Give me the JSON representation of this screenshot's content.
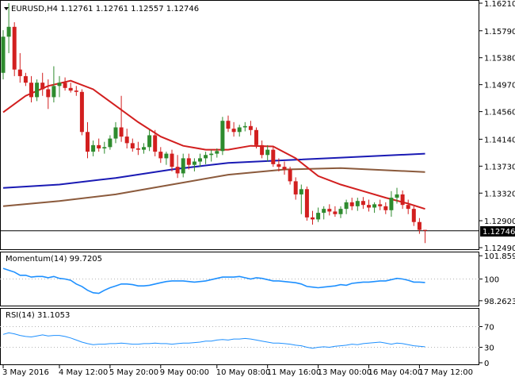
{
  "chart_data": {
    "type": "candlestick",
    "symbol_line": "EURUSD,H4  1.12761 1.12761 1.12557 1.12746",
    "last_price": "1.12746",
    "colors": {
      "bull": "#2e8b2e",
      "bear": "#d21f1f",
      "ma20": "#d21f1f",
      "ma100": "#1a1ab4",
      "ma200": "#8b5a3c",
      "momentum": "#1e90ff",
      "rsi": "#1e90ff",
      "grid": "#c8c8c8",
      "level_dots": "#b4b4b4"
    },
    "price_axis": {
      "min": 1.1249,
      "max": 1.1621,
      "ticks": [
        "1.16210",
        "1.15790",
        "1.15380",
        "1.14970",
        "1.14560",
        "1.14140",
        "1.13730",
        "1.13320",
        "1.12900",
        "1.12490"
      ]
    },
    "candles": [
      {
        "o": 1.1515,
        "h": 1.158,
        "l": 1.1505,
        "c": 1.157
      },
      {
        "o": 1.157,
        "h": 1.1621,
        "l": 1.1545,
        "c": 1.1585
      },
      {
        "o": 1.1585,
        "h": 1.1592,
        "l": 1.151,
        "c": 1.152
      },
      {
        "o": 1.152,
        "h": 1.1545,
        "l": 1.15,
        "c": 1.151
      },
      {
        "o": 1.151,
        "h": 1.1515,
        "l": 1.1495,
        "c": 1.15
      },
      {
        "o": 1.15,
        "h": 1.151,
        "l": 1.147,
        "c": 1.1478
      },
      {
        "o": 1.1478,
        "h": 1.1505,
        "l": 1.1472,
        "c": 1.15
      },
      {
        "o": 1.15,
        "h": 1.1515,
        "l": 1.148,
        "c": 1.149
      },
      {
        "o": 1.149,
        "h": 1.1505,
        "l": 1.146,
        "c": 1.1478
      },
      {
        "o": 1.1478,
        "h": 1.1525,
        "l": 1.147,
        "c": 1.1495
      },
      {
        "o": 1.1495,
        "h": 1.151,
        "l": 1.1478,
        "c": 1.15
      },
      {
        "o": 1.15,
        "h": 1.1508,
        "l": 1.1488,
        "c": 1.1492
      },
      {
        "o": 1.1492,
        "h": 1.15,
        "l": 1.1485,
        "c": 1.1488
      },
      {
        "o": 1.1488,
        "h": 1.1495,
        "l": 1.148,
        "c": 1.1486
      },
      {
        "o": 1.1486,
        "h": 1.149,
        "l": 1.142,
        "c": 1.1425
      },
      {
        "o": 1.1425,
        "h": 1.144,
        "l": 1.1385,
        "c": 1.1395
      },
      {
        "o": 1.1395,
        "h": 1.1412,
        "l": 1.1388,
        "c": 1.1405
      },
      {
        "o": 1.1405,
        "h": 1.1415,
        "l": 1.1395,
        "c": 1.14
      },
      {
        "o": 1.14,
        "h": 1.141,
        "l": 1.1392,
        "c": 1.1402
      },
      {
        "o": 1.1402,
        "h": 1.142,
        "l": 1.1398,
        "c": 1.1415
      },
      {
        "o": 1.1415,
        "h": 1.144,
        "l": 1.1408,
        "c": 1.1432
      },
      {
        "o": 1.1432,
        "h": 1.148,
        "l": 1.141,
        "c": 1.1418
      },
      {
        "o": 1.1418,
        "h": 1.143,
        "l": 1.14,
        "c": 1.1408
      },
      {
        "o": 1.1408,
        "h": 1.1415,
        "l": 1.1395,
        "c": 1.14
      },
      {
        "o": 1.14,
        "h": 1.141,
        "l": 1.139,
        "c": 1.1398
      },
      {
        "o": 1.1398,
        "h": 1.1408,
        "l": 1.1392,
        "c": 1.1402
      },
      {
        "o": 1.1402,
        "h": 1.1428,
        "l": 1.1396,
        "c": 1.142
      },
      {
        "o": 1.142,
        "h": 1.1428,
        "l": 1.1388,
        "c": 1.1395
      },
      {
        "o": 1.1395,
        "h": 1.1402,
        "l": 1.1378,
        "c": 1.1385
      },
      {
        "o": 1.1385,
        "h": 1.1395,
        "l": 1.1375,
        "c": 1.1392
      },
      {
        "o": 1.1392,
        "h": 1.1398,
        "l": 1.1365,
        "c": 1.1372
      },
      {
        "o": 1.1372,
        "h": 1.139,
        "l": 1.1355,
        "c": 1.1362
      },
      {
        "o": 1.1362,
        "h": 1.1392,
        "l": 1.1356,
        "c": 1.1385
      },
      {
        "o": 1.1385,
        "h": 1.1392,
        "l": 1.1368,
        "c": 1.1375
      },
      {
        "o": 1.1375,
        "h": 1.1385,
        "l": 1.1365,
        "c": 1.138
      },
      {
        "o": 1.138,
        "h": 1.1392,
        "l": 1.1372,
        "c": 1.1385
      },
      {
        "o": 1.1385,
        "h": 1.1395,
        "l": 1.1376,
        "c": 1.139
      },
      {
        "o": 1.139,
        "h": 1.1398,
        "l": 1.138,
        "c": 1.1392
      },
      {
        "o": 1.1392,
        "h": 1.14,
        "l": 1.1386,
        "c": 1.1396
      },
      {
        "o": 1.1396,
        "h": 1.1448,
        "l": 1.139,
        "c": 1.1442
      },
      {
        "o": 1.1442,
        "h": 1.145,
        "l": 1.1425,
        "c": 1.143
      },
      {
        "o": 1.143,
        "h": 1.144,
        "l": 1.1418,
        "c": 1.1425
      },
      {
        "o": 1.1425,
        "h": 1.1436,
        "l": 1.1418,
        "c": 1.1432
      },
      {
        "o": 1.1432,
        "h": 1.144,
        "l": 1.1426,
        "c": 1.1434
      },
      {
        "o": 1.1434,
        "h": 1.1442,
        "l": 1.142,
        "c": 1.1428
      },
      {
        "o": 1.1428,
        "h": 1.1432,
        "l": 1.14,
        "c": 1.1405
      },
      {
        "o": 1.1405,
        "h": 1.1412,
        "l": 1.1385,
        "c": 1.139
      },
      {
        "o": 1.139,
        "h": 1.1405,
        "l": 1.138,
        "c": 1.1398
      },
      {
        "o": 1.1398,
        "h": 1.1402,
        "l": 1.1372,
        "c": 1.1376
      },
      {
        "o": 1.1376,
        "h": 1.1385,
        "l": 1.1365,
        "c": 1.1372
      },
      {
        "o": 1.1372,
        "h": 1.138,
        "l": 1.136,
        "c": 1.1368
      },
      {
        "o": 1.1368,
        "h": 1.1372,
        "l": 1.1345,
        "c": 1.135
      },
      {
        "o": 1.135,
        "h": 1.1356,
        "l": 1.1322,
        "c": 1.133
      },
      {
        "o": 1.133,
        "h": 1.1345,
        "l": 1.13,
        "c": 1.1338
      },
      {
        "o": 1.1338,
        "h": 1.1342,
        "l": 1.129,
        "c": 1.1295
      },
      {
        "o": 1.1295,
        "h": 1.1305,
        "l": 1.1284,
        "c": 1.1292
      },
      {
        "o": 1.1292,
        "h": 1.131,
        "l": 1.1288,
        "c": 1.1302
      },
      {
        "o": 1.1302,
        "h": 1.1312,
        "l": 1.1292,
        "c": 1.1308
      },
      {
        "o": 1.1308,
        "h": 1.1315,
        "l": 1.1298,
        "c": 1.1304
      },
      {
        "o": 1.1304,
        "h": 1.1312,
        "l": 1.1296,
        "c": 1.13
      },
      {
        "o": 1.13,
        "h": 1.1312,
        "l": 1.1294,
        "c": 1.1308
      },
      {
        "o": 1.1308,
        "h": 1.1322,
        "l": 1.13,
        "c": 1.1318
      },
      {
        "o": 1.1318,
        "h": 1.1325,
        "l": 1.1306,
        "c": 1.1312
      },
      {
        "o": 1.1312,
        "h": 1.1325,
        "l": 1.1305,
        "c": 1.132
      },
      {
        "o": 1.132,
        "h": 1.1326,
        "l": 1.1308,
        "c": 1.1314
      },
      {
        "o": 1.1314,
        "h": 1.1322,
        "l": 1.1304,
        "c": 1.131
      },
      {
        "o": 1.131,
        "h": 1.1318,
        "l": 1.1302,
        "c": 1.1315
      },
      {
        "o": 1.1315,
        "h": 1.1322,
        "l": 1.1306,
        "c": 1.1312
      },
      {
        "o": 1.1312,
        "h": 1.1318,
        "l": 1.13,
        "c": 1.1306
      },
      {
        "o": 1.1306,
        "h": 1.1335,
        "l": 1.1296,
        "c": 1.1325
      },
      {
        "o": 1.1325,
        "h": 1.134,
        "l": 1.1316,
        "c": 1.133
      },
      {
        "o": 1.133,
        "h": 1.1336,
        "l": 1.1308,
        "c": 1.1314
      },
      {
        "o": 1.1314,
        "h": 1.1322,
        "l": 1.13,
        "c": 1.1308
      },
      {
        "o": 1.1308,
        "h": 1.1312,
        "l": 1.1282,
        "c": 1.1288
      },
      {
        "o": 1.1288,
        "h": 1.1294,
        "l": 1.127,
        "c": 1.1276
      },
      {
        "o": 1.1276,
        "h": 1.1276,
        "l": 1.1256,
        "c": 1.1275
      }
    ],
    "moving_averages": {
      "ma20": [
        [
          0,
          1.1455
        ],
        [
          4,
          1.148
        ],
        [
          8,
          1.1495
        ],
        [
          12,
          1.1503
        ],
        [
          16,
          1.149
        ],
        [
          20,
          1.1465
        ],
        [
          24,
          1.144
        ],
        [
          28,
          1.1418
        ],
        [
          32,
          1.1404
        ],
        [
          36,
          1.1398
        ],
        [
          40,
          1.1398
        ],
        [
          44,
          1.1404
        ],
        [
          48,
          1.1403
        ],
        [
          52,
          1.1385
        ],
        [
          56,
          1.1358
        ],
        [
          60,
          1.1345
        ],
        [
          64,
          1.1335
        ],
        [
          68,
          1.1325
        ],
        [
          72,
          1.1316
        ],
        [
          75,
          1.1308
        ]
      ],
      "ma100": [
        [
          0,
          1.134
        ],
        [
          10,
          1.1345
        ],
        [
          20,
          1.1355
        ],
        [
          30,
          1.1368
        ],
        [
          40,
          1.1378
        ],
        [
          50,
          1.1382
        ],
        [
          60,
          1.1386
        ],
        [
          70,
          1.139
        ],
        [
          75,
          1.1392
        ]
      ],
      "ma200": [
        [
          0,
          1.1312
        ],
        [
          10,
          1.132
        ],
        [
          20,
          1.133
        ],
        [
          30,
          1.1345
        ],
        [
          40,
          1.136
        ],
        [
          50,
          1.1368
        ],
        [
          60,
          1.137
        ],
        [
          70,
          1.1366
        ],
        [
          75,
          1.1364
        ]
      ]
    },
    "momentum": {
      "label": "Momentum(14) 99.7205",
      "ymin": 98.0,
      "ymax": 102.0,
      "ticks": [
        "101.8592",
        "100",
        "98.2623"
      ],
      "ref_level": 100,
      "values": [
        100.85,
        100.7,
        100.55,
        100.3,
        100.3,
        100.15,
        100.2,
        100.2,
        100.1,
        100.2,
        100.05,
        100.0,
        99.9,
        99.6,
        99.4,
        99.1,
        98.9,
        98.85,
        99.1,
        99.3,
        99.45,
        99.6,
        99.6,
        99.55,
        99.45,
        99.45,
        99.5,
        99.6,
        99.7,
        99.8,
        99.85,
        99.85,
        99.85,
        99.8,
        99.75,
        99.8,
        99.85,
        99.95,
        100.05,
        100.15,
        100.15,
        100.15,
        100.2,
        100.1,
        100.0,
        100.1,
        100.05,
        99.95,
        99.85,
        99.85,
        99.8,
        99.75,
        99.7,
        99.6,
        99.4,
        99.35,
        99.3,
        99.35,
        99.4,
        99.45,
        99.55,
        99.5,
        99.65,
        99.7,
        99.75,
        99.75,
        99.8,
        99.85,
        99.85,
        99.95,
        100.05,
        100.0,
        99.9,
        99.75,
        99.75,
        99.72
      ]
    },
    "rsi": {
      "label": "RSI(14) 31.1053",
      "ymin": 0,
      "ymax": 100,
      "ticks": [
        "70",
        "30",
        "0"
      ],
      "levels": [
        70,
        30
      ],
      "values": [
        55,
        58,
        56,
        53,
        51,
        50,
        52,
        54,
        52,
        53,
        53,
        51,
        48,
        44,
        40,
        37,
        35,
        36,
        36,
        37,
        37,
        38,
        37,
        36,
        36,
        37,
        37,
        38,
        37,
        37,
        36,
        37,
        38,
        38,
        39,
        40,
        42,
        42,
        44,
        45,
        44,
        46,
        46,
        47,
        46,
        44,
        42,
        40,
        38,
        38,
        37,
        36,
        34,
        33,
        30,
        28,
        30,
        31,
        30,
        32,
        33,
        34,
        36,
        35,
        37,
        38,
        39,
        40,
        38,
        36,
        38,
        37,
        35,
        33,
        32,
        31
      ]
    },
    "x_axis": {
      "labels": [
        {
          "i": 0,
          "text": "3 May 2016"
        },
        {
          "i": 10,
          "text": "4 May 12:00"
        },
        {
          "i": 19,
          "text": "5 May 20:00"
        },
        {
          "i": 28,
          "text": "9 May 00:00"
        },
        {
          "i": 38,
          "text": "10 May 08:00"
        },
        {
          "i": 47,
          "text": "11 May 16:00"
        },
        {
          "i": 56,
          "text": "13 May 00:00"
        },
        {
          "i": 65,
          "text": "16 May 04:00"
        },
        {
          "i": 74,
          "text": "17 May 12:00"
        }
      ],
      "last_label": "17 May 12:00"
    }
  }
}
